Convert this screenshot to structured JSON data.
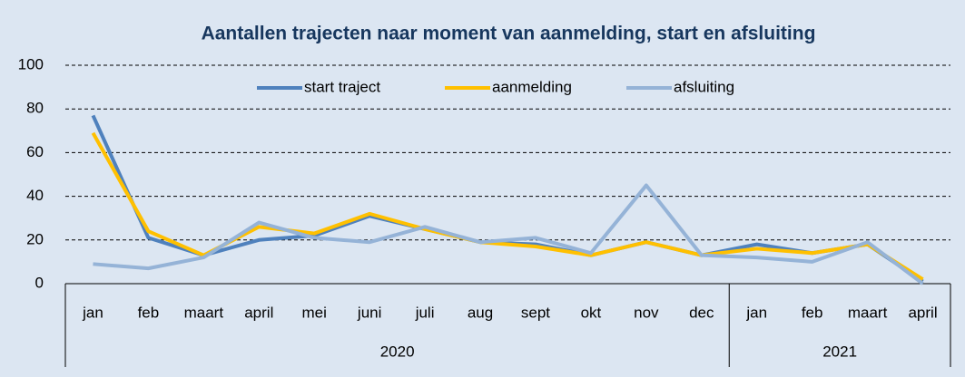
{
  "chart_data": {
    "type": "line",
    "title": "Aantallen trajecten naar moment van aanmelding, start en afsluiting",
    "groups": [
      {
        "label": "2020",
        "categories": [
          "jan",
          "feb",
          "maart",
          "april",
          "mei",
          "juni",
          "juli",
          "aug",
          "sept",
          "okt",
          "nov",
          "dec"
        ]
      },
      {
        "label": "2021",
        "categories": [
          "jan",
          "feb",
          "maart",
          "april"
        ]
      }
    ],
    "series": [
      {
        "name": "start traject",
        "color": "#4f81bd",
        "values": [
          77,
          21,
          13,
          20,
          22,
          31,
          25,
          19,
          18,
          13,
          19,
          13,
          18,
          14,
          18,
          1
        ]
      },
      {
        "name": "aanmelding",
        "color": "#ffc000",
        "values": [
          69,
          24,
          13,
          26,
          23,
          32,
          25,
          19,
          17,
          13,
          19,
          13,
          16,
          14,
          18,
          2
        ]
      },
      {
        "name": "afsluiting",
        "color": "#95b3d7",
        "values": [
          9,
          7,
          12,
          28,
          21,
          19,
          26,
          19,
          21,
          14,
          45,
          13,
          12,
          10,
          19,
          0
        ]
      }
    ],
    "ylim": [
      0,
      100
    ],
    "yticks": [
      0,
      20,
      40,
      60,
      80,
      100
    ],
    "grid": true,
    "legend": "top"
  }
}
